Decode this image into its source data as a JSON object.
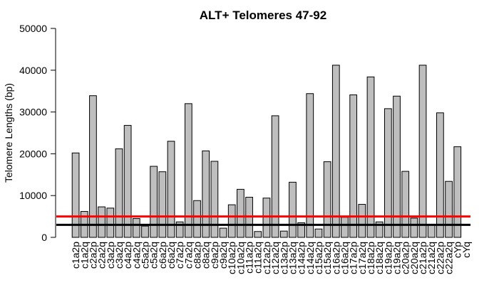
{
  "chart_data": {
    "type": "bar",
    "title": "ALT+ Telomeres 47-92",
    "xlabel": "",
    "ylabel": "Telomere Lengths (bp)",
    "ylim": [
      0,
      50000
    ],
    "yticks": [
      "0",
      "10000",
      "20000",
      "30000",
      "40000",
      "50000"
    ],
    "bar_color": "#bebebe",
    "categories": [
      "c1a2p",
      "c1a2q",
      "c2a2p",
      "c2a2q",
      "c3a2p",
      "c3a2q",
      "c4a2p",
      "c4a2q",
      "c5a2p",
      "c5a2q",
      "c6a2p",
      "c6a2q",
      "c7a2p",
      "c7a2q",
      "c8a2p",
      "c8a2q",
      "c9a2p",
      "c9a2q",
      "c10a2p",
      "c10a2q",
      "c11a2p",
      "c11a2q",
      "c12a2p",
      "c12a2q",
      "c13a2p",
      "c13a2q",
      "c14a2p",
      "c14a2q",
      "c15a2p",
      "c15a2q",
      "c16a2p",
      "c16a2q",
      "c17a2p",
      "c17a2q",
      "c18a2p",
      "c18a2q",
      "c19a2p",
      "c19a2q",
      "c20a2p",
      "c20a2q",
      "c21a2p",
      "c21a2q",
      "c22a2p",
      "c22a2q",
      "cYp",
      "cYq"
    ],
    "values": [
      20200,
      6200,
      33900,
      7300,
      7000,
      21200,
      26800,
      4500,
      2700,
      17000,
      15700,
      23000,
      3700,
      32000,
      8800,
      20700,
      18200,
      2200,
      7800,
      11500,
      9600,
      1400,
      9400,
      29100,
      1500,
      13200,
      3500,
      34400,
      2000,
      18100,
      41200,
      4800,
      34100,
      7900,
      38400,
      3700,
      30800,
      33800,
      15800,
      4600,
      41200,
      3000,
      29800,
      13400,
      21700,
      0
    ],
    "reference_lines": [
      {
        "value": 5000,
        "color": "#ff0000"
      },
      {
        "value": 3000,
        "color": "#000000"
      }
    ]
  }
}
